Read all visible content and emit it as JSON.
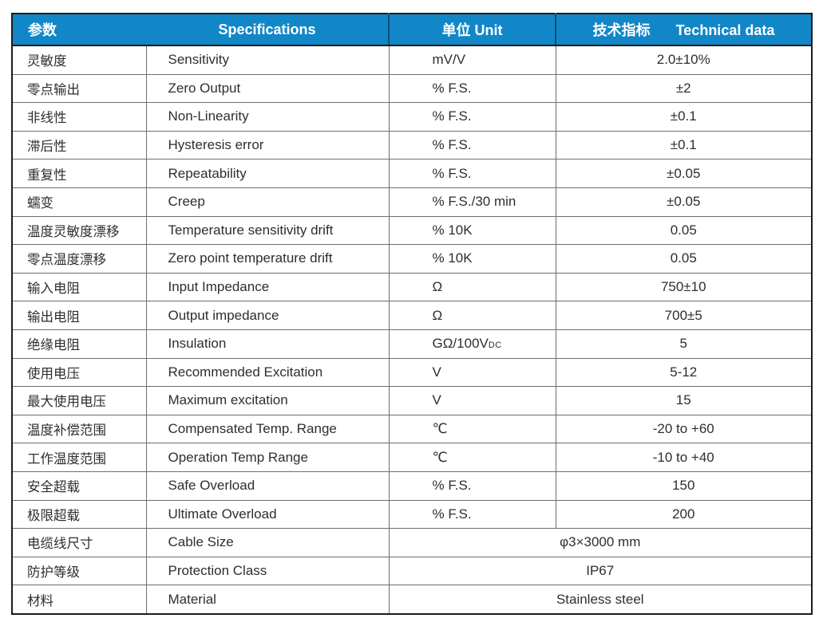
{
  "table": {
    "colors": {
      "header_bg": "#1287c8",
      "header_text": "#ffffff",
      "body_text": "#2e2e2e",
      "grid_line": "#6e6e6e",
      "outer_border": "#1c1c1c"
    },
    "header": {
      "col_param": "参数",
      "col_spec": "Specifications",
      "col_unit": "单位 Unit",
      "col_tech_zh": "技术指标",
      "col_tech_en": "Technical data"
    },
    "rows": [
      {
        "param": "灵敏度",
        "spec": "Sensitivity",
        "unit": "mV/V",
        "value": "2.0±10%"
      },
      {
        "param": "零点输出",
        "spec": "Zero Output",
        "unit": "% F.S.",
        "value": "±2"
      },
      {
        "param": "非线性",
        "spec": "Non-Linearity",
        "unit": "% F.S.",
        "value": "±0.1"
      },
      {
        "param": "滞后性",
        "spec": "Hysteresis error",
        "unit": "% F.S.",
        "value": "±0.1"
      },
      {
        "param": "重复性",
        "spec": "Repeatability",
        "unit": "% F.S.",
        "value": "±0.05"
      },
      {
        "param": "蠕变",
        "spec": "Creep",
        "unit": "% F.S./30 min",
        "value": "±0.05"
      },
      {
        "param": "温度灵敏度漂移",
        "spec": "Temperature sensitivity drift",
        "unit": "% 10K",
        "value": "0.05"
      },
      {
        "param": "零点温度漂移",
        "spec": "Zero point temperature drift",
        "unit": "% 10K",
        "value": "0.05"
      },
      {
        "param": "输入电阻",
        "spec": "Input Impedance",
        "unit": "Ω",
        "value": "750±10"
      },
      {
        "param": "输出电阻",
        "spec": "Output impedance",
        "unit": "Ω",
        "value": "700±5"
      },
      {
        "param": "绝缘电阻",
        "spec": "Insulation",
        "unit": "GΩ/100V",
        "unit_small": "DC",
        "value": "5"
      },
      {
        "param": "使用电压",
        "spec": "Recommended Excitation",
        "unit": "V",
        "value": "5-12"
      },
      {
        "param": "最大使用电压",
        "spec": "Maximum excitation",
        "unit": "V",
        "value": "15"
      },
      {
        "param": "温度补偿范围",
        "spec": "Compensated Temp. Range",
        "unit": "℃",
        "value": "-20 to +60"
      },
      {
        "param": "工作温度范围",
        "spec": "Operation Temp Range",
        "unit": "℃",
        "value": "-10 to +40"
      },
      {
        "param": "安全超载",
        "spec": "Safe Overload",
        "unit": "% F.S.",
        "value": "150"
      },
      {
        "param": "极限超载",
        "spec": "Ultimate Overload",
        "unit": "% F.S.",
        "value": "200"
      },
      {
        "param": "电缆线尺寸",
        "spec": "Cable Size",
        "merged_value": "φ3×3000 mm"
      },
      {
        "param": "防护等级",
        "spec": "Protection Class",
        "merged_value": "IP67"
      },
      {
        "param": "材料",
        "spec": "Material",
        "merged_value": "Stainless steel"
      }
    ]
  }
}
